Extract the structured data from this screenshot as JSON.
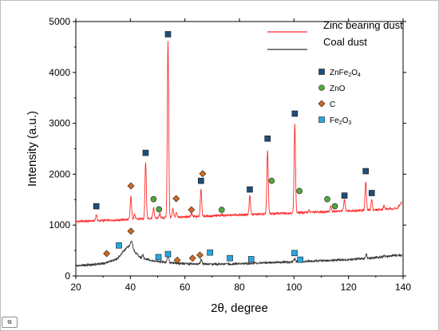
{
  "chart_data": {
    "type": "line",
    "xlabel": "2θ, degree",
    "ylabel": "Intensity (a.u.)",
    "xlim": [
      20,
      140
    ],
    "ylim": [
      0,
      5000
    ],
    "x_ticks": [
      20,
      40,
      60,
      80,
      100,
      120,
      140
    ],
    "y_ticks": [
      0,
      1000,
      2000,
      3000,
      4000,
      5000
    ],
    "series": [
      {
        "name": "Zinc bearing dust",
        "color": "#ff2a2a",
        "baseline": [
          [
            20,
            1070
          ],
          [
            30,
            1090
          ],
          [
            40,
            1110
          ],
          [
            50,
            1140
          ],
          [
            60,
            1160
          ],
          [
            70,
            1180
          ],
          [
            80,
            1200
          ],
          [
            90,
            1220
          ],
          [
            100,
            1240
          ],
          [
            110,
            1260
          ],
          [
            120,
            1280
          ],
          [
            130,
            1300
          ],
          [
            138,
            1330
          ],
          [
            139.5,
            1450
          ]
        ],
        "peaks": [
          {
            "x": 27.5,
            "y": 1200
          },
          {
            "x": 40.2,
            "y": 1560
          },
          {
            "x": 41.5,
            "y": 1220
          },
          {
            "x": 45.6,
            "y": 2250
          },
          {
            "x": 48.5,
            "y": 1330
          },
          {
            "x": 50.8,
            "y": 1220
          },
          {
            "x": 53.8,
            "y": 4620
          },
          {
            "x": 55.6,
            "y": 1330
          },
          {
            "x": 56.8,
            "y": 1240
          },
          {
            "x": 62.4,
            "y": 1230
          },
          {
            "x": 65.9,
            "y": 1720
          },
          {
            "x": 73.5,
            "y": 1210
          },
          {
            "x": 83.8,
            "y": 1580
          },
          {
            "x": 90.3,
            "y": 2480
          },
          {
            "x": 100.3,
            "y": 3010
          },
          {
            "x": 105.5,
            "y": 1290
          },
          {
            "x": 113.5,
            "y": 1380
          },
          {
            "x": 118.5,
            "y": 1510
          },
          {
            "x": 126.3,
            "y": 1850
          },
          {
            "x": 128.5,
            "y": 1500
          },
          {
            "x": 133,
            "y": 1380
          }
        ]
      },
      {
        "name": "Coal dust",
        "color": "#333333",
        "baseline": [
          [
            20,
            200
          ],
          [
            30,
            240
          ],
          [
            35,
            330
          ],
          [
            38,
            520
          ],
          [
            40,
            620
          ],
          [
            42,
            450
          ],
          [
            44,
            350
          ],
          [
            50,
            280
          ],
          [
            60,
            240
          ],
          [
            70,
            230
          ],
          [
            80,
            240
          ],
          [
            90,
            260
          ],
          [
            100,
            280
          ],
          [
            110,
            300
          ],
          [
            120,
            320
          ],
          [
            130,
            360
          ],
          [
            138,
            410
          ],
          [
            139.5,
            400
          ]
        ],
        "peaks": [
          {
            "x": 40.5,
            "y": 700
          },
          {
            "x": 44.5,
            "y": 420
          },
          {
            "x": 53.8,
            "y": 440
          },
          {
            "x": 66,
            "y": 330
          },
          {
            "x": 100.3,
            "y": 340
          },
          {
            "x": 126.5,
            "y": 420
          },
          {
            "x": 133,
            "y": 400
          }
        ]
      }
    ],
    "marker_legend": [
      {
        "label": "ZnFe",
        "sub1": "2",
        "mid": "O",
        "sub2": "4",
        "marker": "square",
        "color": "#1f4e79"
      },
      {
        "label": "ZnO",
        "marker": "circle",
        "color": "#52a83c"
      },
      {
        "label": "C",
        "marker": "diamond",
        "color": "#d2691e"
      },
      {
        "label": "Fe",
        "sub1": "2",
        "mid": "O",
        "sub2": "3",
        "marker": "square",
        "color": "#2ba7e0"
      }
    ],
    "markers": {
      "ZnFe2O4": [
        [
          27.5,
          1370
        ],
        [
          45.6,
          2420
        ],
        [
          53.8,
          4750
        ],
        [
          65.9,
          1870
        ],
        [
          83.8,
          1700
        ],
        [
          90.3,
          2700
        ],
        [
          100.3,
          3190
        ],
        [
          118.5,
          1580
        ],
        [
          126.3,
          2060
        ],
        [
          128.5,
          1630
        ]
      ],
      "ZnO": [
        [
          48.5,
          1510
        ],
        [
          50.5,
          1310
        ],
        [
          73.5,
          1300
        ],
        [
          91.8,
          1870
        ],
        [
          102,
          1670
        ],
        [
          112.2,
          1510
        ],
        [
          115,
          1370
        ]
      ],
      "C_upper": [
        [
          40.2,
          1770
        ],
        [
          56.8,
          1520
        ],
        [
          62.4,
          1300
        ],
        [
          66.5,
          2010
        ]
      ],
      "C_lower": [
        [
          31.3,
          440
        ],
        [
          40.2,
          880
        ],
        [
          57.2,
          310
        ],
        [
          62.8,
          350
        ],
        [
          65.5,
          410
        ]
      ],
      "Fe2O3": [
        [
          35.8,
          600
        ],
        [
          50.3,
          370
        ],
        [
          53.8,
          430
        ],
        [
          69.2,
          460
        ],
        [
          76.5,
          350
        ],
        [
          84.3,
          330
        ],
        [
          100.2,
          450
        ],
        [
          102.3,
          320
        ]
      ]
    }
  },
  "badge": "⧉"
}
